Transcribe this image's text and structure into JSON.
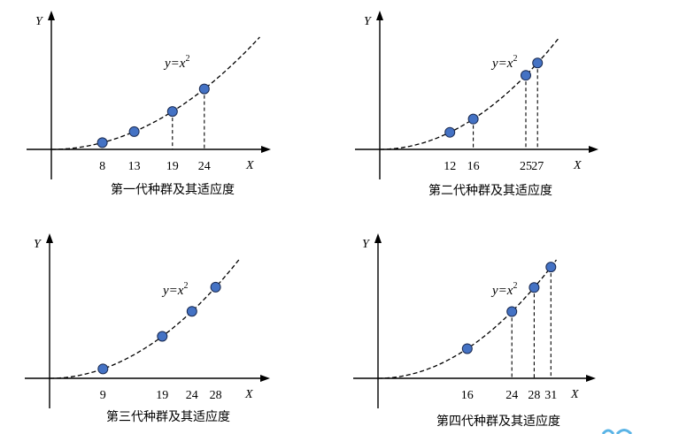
{
  "axis_labels": {
    "x": "X",
    "y": "Y"
  },
  "equation": {
    "main": "y=x",
    "power": "2"
  },
  "chart_data": [
    {
      "type": "scatter",
      "title": "第一代种群及其适应度",
      "curve": "y = x^2",
      "x": [
        8,
        13,
        19,
        24
      ],
      "dropped_lines_at": [
        19,
        24
      ],
      "xlabel": "X",
      "ylabel": "Y"
    },
    {
      "type": "scatter",
      "title": "第二代种群及其适应度",
      "curve": "y = x^2",
      "x": [
        12,
        16,
        25,
        27
      ],
      "dropped_lines_at": [
        16,
        25,
        27
      ],
      "xlabel": "X",
      "ylabel": "Y"
    },
    {
      "type": "scatter",
      "title": "第三代种群及其适应度",
      "curve": "y = x^2",
      "x": [
        9,
        19,
        24,
        28
      ],
      "dropped_lines_at": [],
      "xlabel": "X",
      "ylabel": "Y"
    },
    {
      "type": "scatter",
      "title": "第四代种群及其适应度",
      "curve": "y = x^2",
      "x": [
        16,
        24,
        28,
        31
      ],
      "dropped_lines_at": [
        24,
        28,
        31
      ],
      "xlabel": "X",
      "ylabel": "Y"
    }
  ],
  "colors": {
    "point_fill": "#4472c4",
    "logo": "#5ab4e6"
  }
}
